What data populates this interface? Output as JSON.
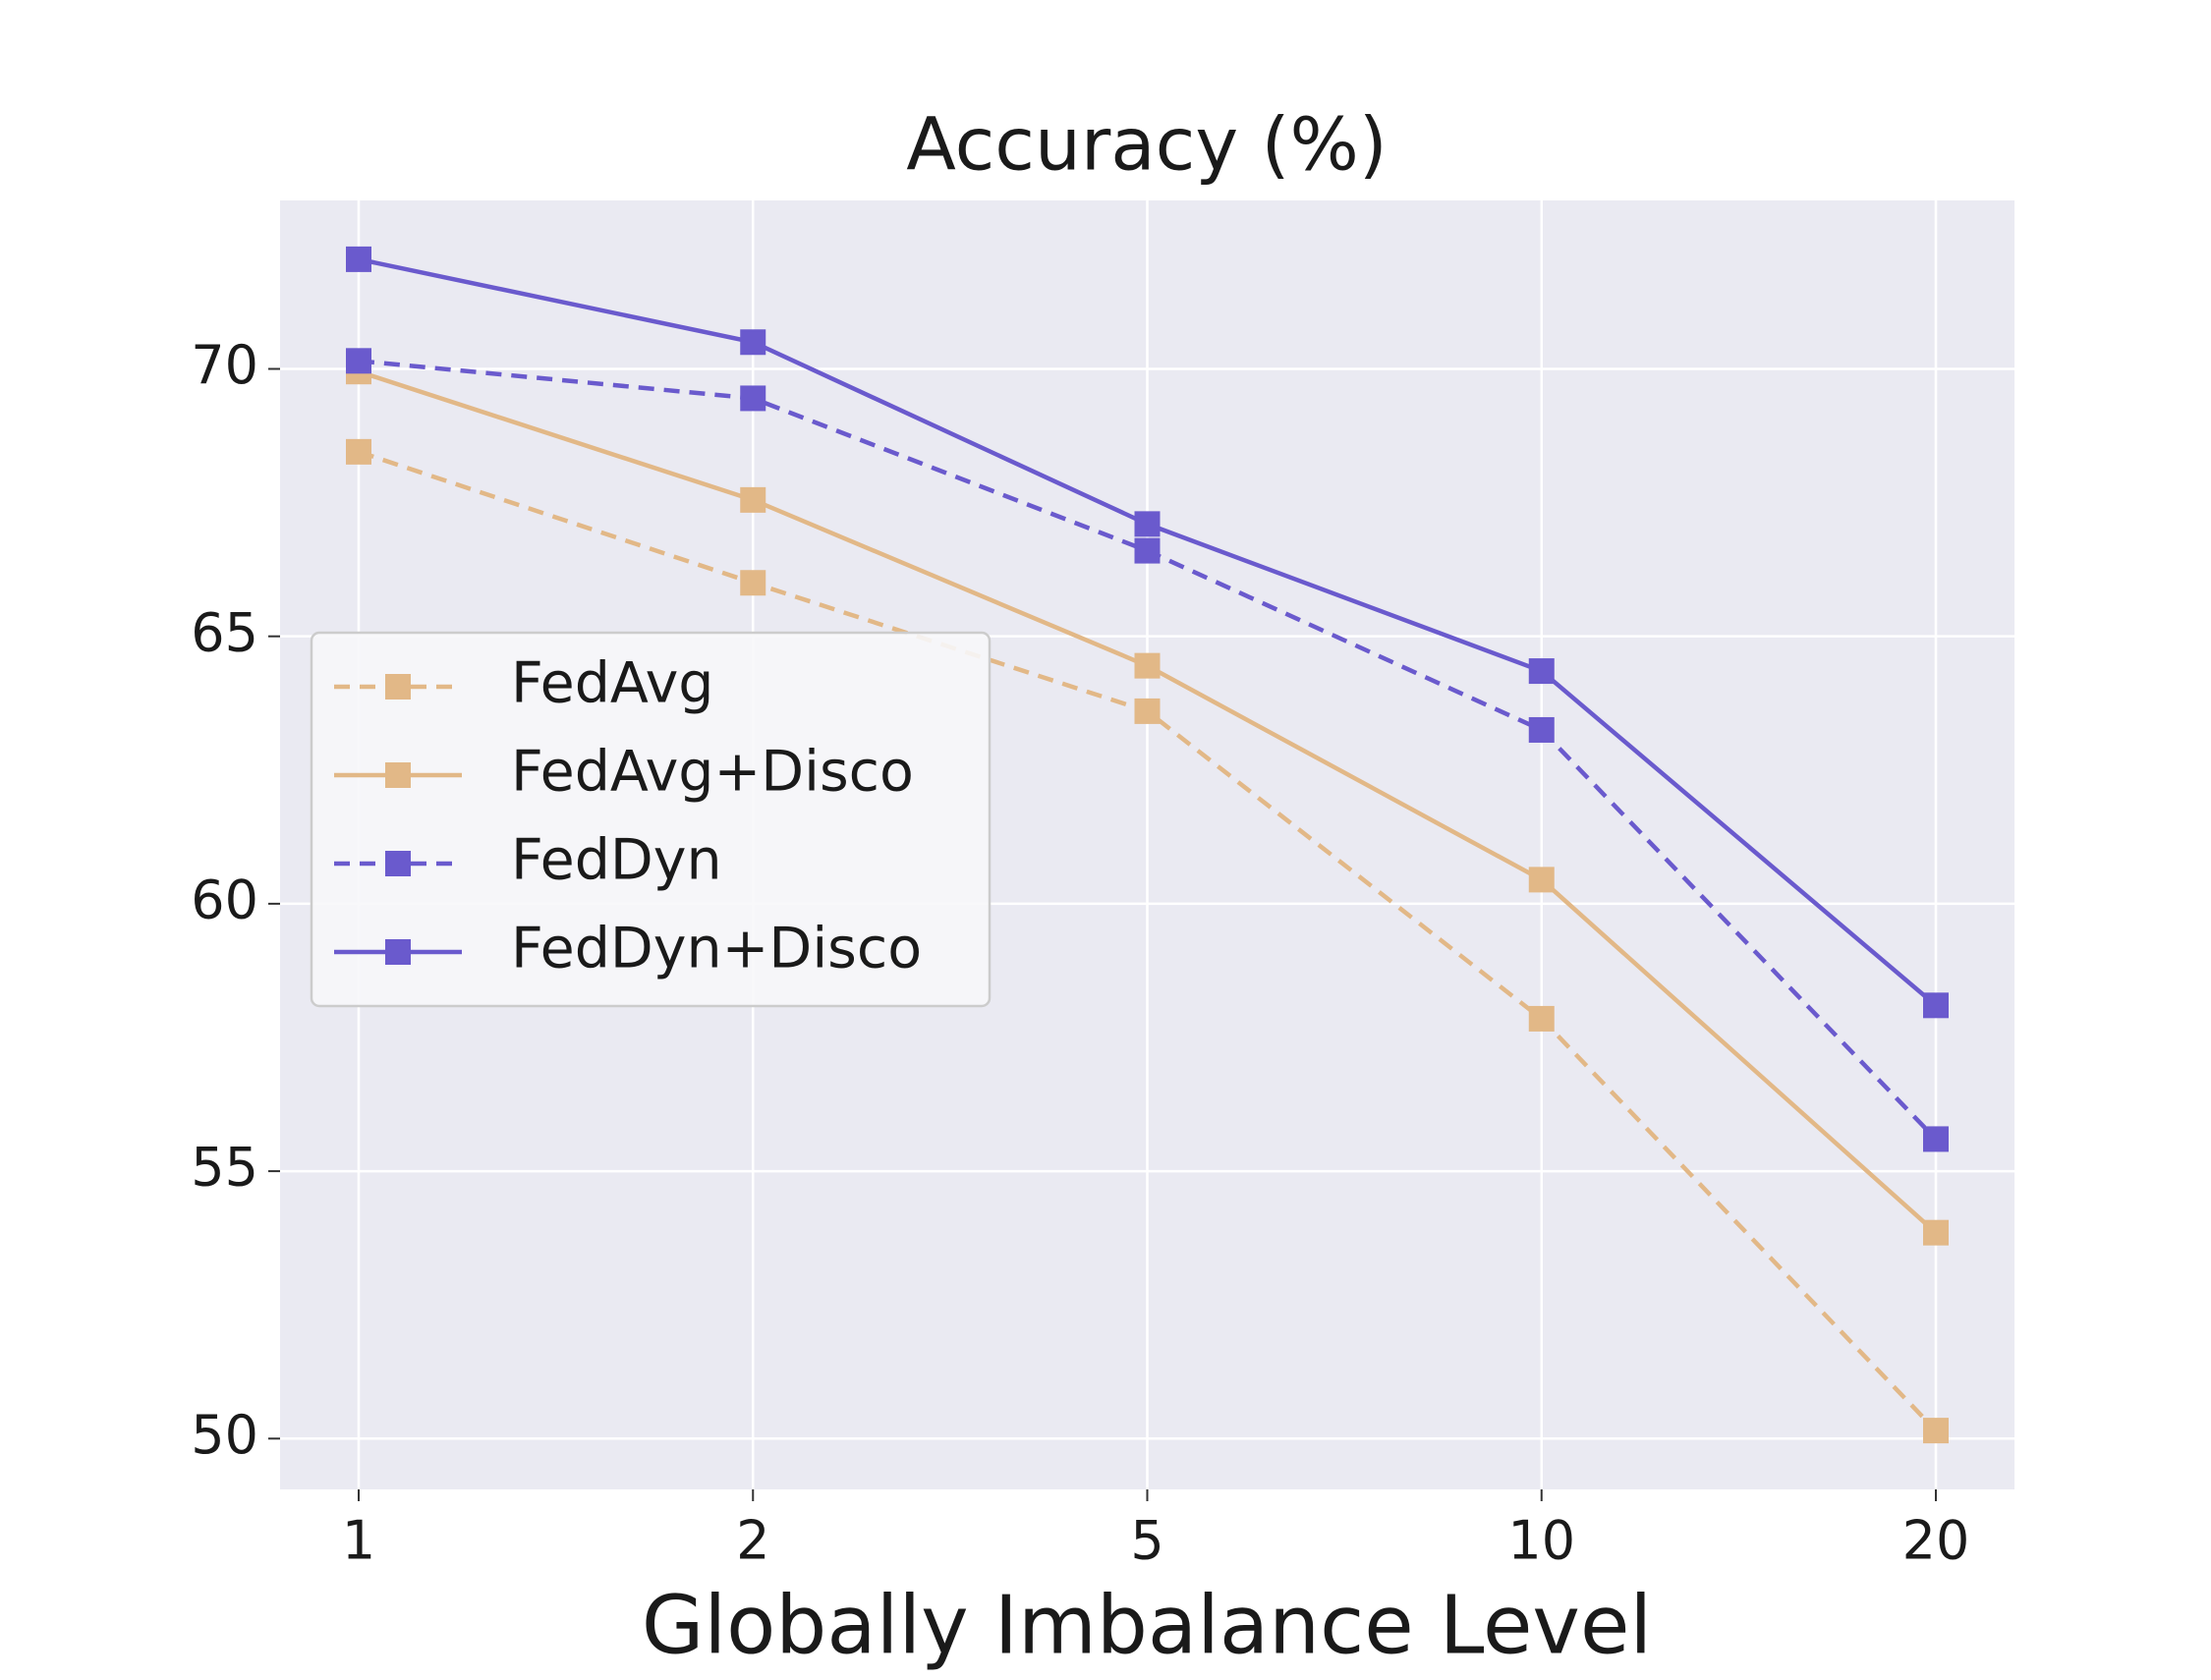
{
  "chart_data": {
    "type": "line",
    "title": "Accuracy (%)",
    "x_label": "Globally Imbalance Level",
    "categories": [
      "1",
      "2",
      "5",
      "10",
      "20"
    ],
    "series": [
      {
        "name": "FedAvg",
        "color": "#e2b887",
        "linestyle": "dashed",
        "values": [
          68.45,
          66.0,
          63.6,
          57.85,
          50.15
        ]
      },
      {
        "name": "FedAvg+Disco",
        "color": "#e2b887",
        "linestyle": "solid",
        "values": [
          69.95,
          67.55,
          64.45,
          60.45,
          53.85
        ]
      },
      {
        "name": "FedDyn",
        "color": "#6a5acd",
        "linestyle": "dashed",
        "values": [
          70.15,
          69.45,
          66.6,
          63.25,
          55.6
        ]
      },
      {
        "name": "FedDyn+Disco",
        "color": "#6a5acd",
        "linestyle": "solid",
        "values": [
          72.05,
          70.5,
          67.1,
          64.35,
          58.1
        ]
      }
    ],
    "ylim": [
      49.05,
      73.15
    ],
    "yticks": [
      50,
      55,
      60,
      65,
      70
    ],
    "grid": true,
    "legend": "center left"
  }
}
